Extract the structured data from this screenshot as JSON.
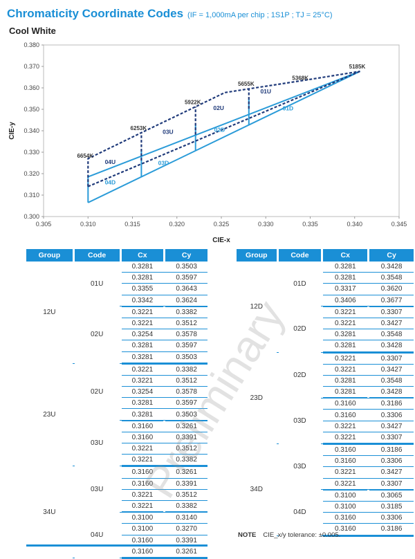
{
  "title": "Chromaticity Coordinate Codes",
  "conditions": "(IF = 1,000mA per chip ; 1S1P ; TJ = 25°C)",
  "subtitle": "Cool White",
  "watermark": "Preliminary",
  "note_label": "NOTE",
  "note_text": "CIE_x/y tolerance: ±0.005.",
  "table_headers": {
    "group": "Group",
    "code": "Code",
    "cx": "Cx",
    "cy": "Cy"
  },
  "colors": {
    "accent": "#1a8fd6",
    "u_bins": "#1f3a7a",
    "d_bins": "#2a9bd8"
  },
  "chart_data": {
    "type": "scatter",
    "xlabel": "CIE-x",
    "ylabel": "CIE-y",
    "xlim": [
      0.305,
      0.345
    ],
    "ylim": [
      0.3,
      0.38
    ],
    "xticks": [
      "0.305",
      "0.310",
      "0.315",
      "0.320",
      "0.325",
      "0.330",
      "0.335",
      "0.340",
      "0.345"
    ],
    "yticks": [
      "0.380",
      "0.370",
      "0.360",
      "0.350",
      "0.340",
      "0.330",
      "0.320",
      "0.310",
      "0.300"
    ],
    "grid": false,
    "cct_labels": [
      {
        "text": "6654K",
        "x": 0.31,
        "y": 0.3261
      },
      {
        "text": "6253K",
        "x": 0.316,
        "y": 0.3391
      },
      {
        "text": "5922K",
        "x": 0.3221,
        "y": 0.3512
      },
      {
        "text": "5655K",
        "x": 0.3281,
        "y": 0.3597
      },
      {
        "text": "5368K",
        "x": 0.3342,
        "y": 0.3624
      },
      {
        "text": "5185K",
        "x": 0.3406,
        "y": 0.3677
      }
    ],
    "code_labels": [
      {
        "text": "04U",
        "x": 0.3125,
        "y": 0.3245,
        "kind": "u"
      },
      {
        "text": "03U",
        "x": 0.319,
        "y": 0.3385,
        "kind": "u"
      },
      {
        "text": "02U",
        "x": 0.3247,
        "y": 0.3497,
        "kind": "u"
      },
      {
        "text": "01U",
        "x": 0.33,
        "y": 0.3575,
        "kind": "u"
      },
      {
        "text": "04D",
        "x": 0.3125,
        "y": 0.315,
        "kind": "d"
      },
      {
        "text": "03D",
        "x": 0.3185,
        "y": 0.324,
        "kind": "d"
      },
      {
        "text": "02D",
        "x": 0.3248,
        "y": 0.3395,
        "kind": "d"
      },
      {
        "text": "01D",
        "x": 0.3325,
        "y": 0.3495,
        "kind": "d"
      }
    ],
    "solid_lines": [
      [
        [
          0.31,
          0.3065
        ],
        [
          0.3406,
          0.3677
        ]
      ],
      [
        [
          0.31,
          0.3185
        ],
        [
          0.3406,
          0.3677
        ]
      ],
      [
        [
          0.31,
          0.3065
        ],
        [
          0.31,
          0.3185
        ]
      ],
      [
        [
          0.316,
          0.3186
        ],
        [
          0.316,
          0.3306
        ]
      ],
      [
        [
          0.3221,
          0.3307
        ],
        [
          0.3221,
          0.3427
        ]
      ],
      [
        [
          0.3281,
          0.3428
        ],
        [
          0.3281,
          0.3548
        ]
      ]
    ],
    "dark_dashed_lines": [
      [
        [
          0.31,
          0.314
        ],
        [
          0.31,
          0.327
        ],
        [
          0.316,
          0.3391
        ],
        [
          0.3221,
          0.3512
        ],
        [
          0.3254,
          0.3578
        ],
        [
          0.3355,
          0.3643
        ],
        [
          0.3406,
          0.3677
        ]
      ],
      [
        [
          0.31,
          0.314
        ],
        [
          0.3406,
          0.3677
        ]
      ],
      [
        [
          0.316,
          0.3261
        ],
        [
          0.316,
          0.3391
        ]
      ],
      [
        [
          0.3221,
          0.3382
        ],
        [
          0.3221,
          0.3512
        ]
      ],
      [
        [
          0.3281,
          0.3503
        ],
        [
          0.3281,
          0.3597
        ]
      ]
    ]
  },
  "left_table": [
    {
      "group": "12U",
      "codes": [
        {
          "code": "01U",
          "rows": [
            [
              "0.3281",
              "0.3503"
            ],
            [
              "0.3281",
              "0.3597"
            ],
            [
              "0.3355",
              "0.3643"
            ],
            [
              "0.3342",
              "0.3624"
            ]
          ]
        },
        {
          "code": "02U",
          "rows": [
            [
              "0.3221",
              "0.3382"
            ],
            [
              "0.3221",
              "0.3512"
            ],
            [
              "0.3254",
              "0.3578"
            ],
            [
              "0.3281",
              "0.3597"
            ],
            [
              "0.3281",
              "0.3503"
            ]
          ]
        }
      ]
    },
    {
      "group": "23U",
      "codes": [
        {
          "code": "02U",
          "rows": [
            [
              "0.3221",
              "0.3382"
            ],
            [
              "0.3221",
              "0.3512"
            ],
            [
              "0.3254",
              "0.3578"
            ],
            [
              "0.3281",
              "0.3597"
            ],
            [
              "0.3281",
              "0.3503"
            ]
          ]
        },
        {
          "code": "03U",
          "rows": [
            [
              "0.3160",
              "0.3261"
            ],
            [
              "0.3160",
              "0.3391"
            ],
            [
              "0.3221",
              "0.3512"
            ],
            [
              "0.3221",
              "0.3382"
            ]
          ]
        }
      ]
    },
    {
      "group": "34U",
      "codes": [
        {
          "code": "03U",
          "rows": [
            [
              "0.3160",
              "0.3261"
            ],
            [
              "0.3160",
              "0.3391"
            ],
            [
              "0.3221",
              "0.3512"
            ],
            [
              "0.3221",
              "0.3382"
            ]
          ]
        },
        {
          "code": "04U",
          "rows": [
            [
              "0.3100",
              "0.3140"
            ],
            [
              "0.3100",
              "0.3270"
            ],
            [
              "0.3160",
              "0.3391"
            ],
            [
              "0.3160",
              "0.3261"
            ]
          ]
        }
      ]
    }
  ],
  "right_table": [
    {
      "group": "12D",
      "codes": [
        {
          "code": "01D",
          "rows": [
            [
              "0.3281",
              "0.3428"
            ],
            [
              "0.3281",
              "0.3548"
            ],
            [
              "0.3317",
              "0.3620"
            ],
            [
              "0.3406",
              "0.3677"
            ]
          ]
        },
        {
          "code": "02D",
          "rows": [
            [
              "0.3221",
              "0.3307"
            ],
            [
              "0.3221",
              "0.3427"
            ],
            [
              "0.3281",
              "0.3548"
            ],
            [
              "0.3281",
              "0.3428"
            ]
          ]
        }
      ]
    },
    {
      "group": "23D",
      "codes": [
        {
          "code": "02D",
          "rows": [
            [
              "0.3221",
              "0.3307"
            ],
            [
              "0.3221",
              "0.3427"
            ],
            [
              "0.3281",
              "0.3548"
            ],
            [
              "0.3281",
              "0.3428"
            ]
          ]
        },
        {
          "code": "03D",
          "rows": [
            [
              "0.3160",
              "0.3186"
            ],
            [
              "0.3160",
              "0.3306"
            ],
            [
              "0.3221",
              "0.3427"
            ],
            [
              "0.3221",
              "0.3307"
            ]
          ]
        }
      ]
    },
    {
      "group": "34D",
      "codes": [
        {
          "code": "03D",
          "rows": [
            [
              "0.3160",
              "0.3186"
            ],
            [
              "0.3160",
              "0.3306"
            ],
            [
              "0.3221",
              "0.3427"
            ],
            [
              "0.3221",
              "0.3307"
            ]
          ]
        },
        {
          "code": "04D",
          "rows": [
            [
              "0.3100",
              "0.3065"
            ],
            [
              "0.3100",
              "0.3185"
            ],
            [
              "0.3160",
              "0.3306"
            ],
            [
              "0.3160",
              "0.3186"
            ]
          ]
        }
      ]
    }
  ]
}
